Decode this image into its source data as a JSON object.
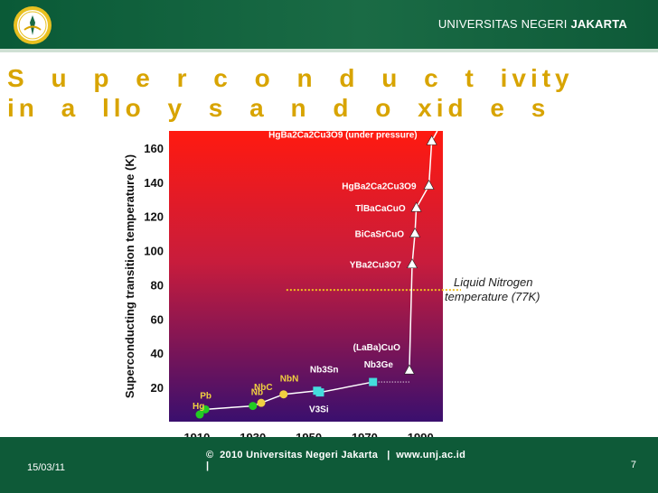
{
  "header": {
    "university_regular": "UNIVERSITAS NEGERI ",
    "university_bold": "JAKARTA",
    "logo_icon": "university-seal-icon"
  },
  "slide": {
    "title": "S u p e r c o n d u c t ivity in a llo y s a n d o xid e s"
  },
  "footer": {
    "date": "15/03/11",
    "copyright": "©  2010 Universitas Negeri Jakarta   |  www.unj.ac.id\n|",
    "page_number": "7"
  },
  "colors": {
    "header_bg": "#0e5a38",
    "title": "#d8a400",
    "plot_top": "#ff1a10",
    "plot_bottom": "#3a0f6e",
    "curve": "#ffffff",
    "nitrogen_line": "#f0c020",
    "point_green": "#22cc22",
    "point_yellow": "#f0d040",
    "point_cyan": "#44dddd"
  },
  "chart_data": {
    "type": "scatter",
    "ylabel": "Superconducting transition temperature (K)",
    "xlabel": "",
    "xlim": [
      1900,
      1998
    ],
    "ylim": [
      0,
      170
    ],
    "x_ticks": [
      1910,
      1930,
      1950,
      1970,
      1990
    ],
    "y_ticks": [
      20,
      40,
      60,
      80,
      100,
      120,
      140,
      160
    ],
    "annotation": {
      "label_line1": "Liquid Nitrogen",
      "label_line2": "temperature (77K)",
      "value": 77
    },
    "series": [
      {
        "marker": "circle",
        "color": "green",
        "points": [
          {
            "x": 1911,
            "y": 4.2,
            "label": "Hg"
          },
          {
            "x": 1913,
            "y": 7.2,
            "label": "Pb"
          },
          {
            "x": 1930,
            "y": 9.2,
            "label": "Nb"
          }
        ]
      },
      {
        "marker": "circle",
        "color": "yellow",
        "points": [
          {
            "x": 1933,
            "y": 11,
            "label": "NbC"
          },
          {
            "x": 1941,
            "y": 16,
            "label": "NbN"
          }
        ]
      },
      {
        "marker": "square",
        "color": "cyan",
        "points": [
          {
            "x": 1953,
            "y": 18.1,
            "label": "Nb3Sn"
          },
          {
            "x": 1954,
            "y": 17.1,
            "label": "V3Si"
          },
          {
            "x": 1973,
            "y": 23.2,
            "label": "Nb3Ge"
          }
        ]
      },
      {
        "marker": "triangle",
        "color": "white",
        "points": [
          {
            "x": 1986,
            "y": 30,
            "label": "(LaBa)CuO"
          },
          {
            "x": 1987,
            "y": 92,
            "label": "YBa2Cu3O7"
          },
          {
            "x": 1988,
            "y": 110,
            "label": "BiCaSrCuO"
          },
          {
            "x": 1988.5,
            "y": 125,
            "label": "TlBaCaCuO"
          },
          {
            "x": 1993,
            "y": 138,
            "label": "HgBa2Ca2Cu3O9"
          },
          {
            "x": 1994,
            "y": 164,
            "label": "HgBa2Ca2Cu3O9 (under pressure)"
          }
        ]
      }
    ]
  }
}
